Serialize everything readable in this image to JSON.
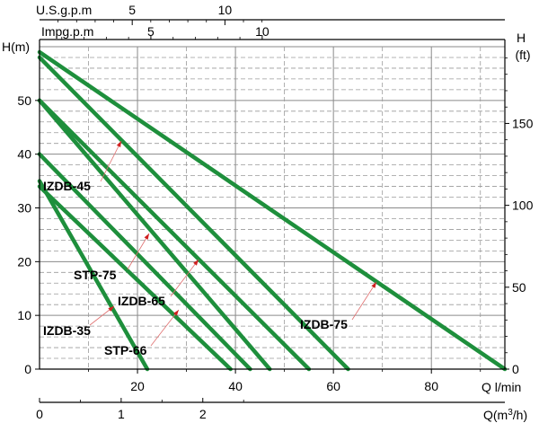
{
  "chart_data": {
    "type": "line",
    "axes": {
      "left": {
        "title": "H(m)",
        "ticks": [
          "0",
          "10",
          "20",
          "30",
          "40",
          "50"
        ],
        "range": [
          0,
          60
        ]
      },
      "right": {
        "title_lines": [
          "H",
          "(ft)"
        ],
        "ticks": [
          "0",
          "50",
          "100",
          "150"
        ],
        "range_ft": [
          0,
          196.85
        ]
      },
      "bottom_lmin": {
        "title": "Q l/min",
        "ticks": [
          "20",
          "40",
          "60",
          "80"
        ],
        "range": [
          0,
          95
        ]
      },
      "bottom_m3h": {
        "title_prefix": "Q(m",
        "title_sup": "3",
        "title_suffix": "/h)",
        "ticks": [
          "0",
          "1",
          "2"
        ]
      },
      "top_usgpm": {
        "title": "U.S.g.p.m",
        "ticks": [
          "5",
          "10"
        ]
      },
      "top_impgpm": {
        "title": "Impg.p.m",
        "ticks": [
          "5",
          "10"
        ]
      }
    },
    "grid": true,
    "series": [
      {
        "name": "IZDB-75",
        "x": [
          0,
          95
        ],
        "y": [
          59,
          0
        ]
      },
      {
        "name": "",
        "x": [
          0,
          63
        ],
        "y": [
          58,
          0
        ]
      },
      {
        "name": "",
        "x": [
          0,
          55
        ],
        "y": [
          50,
          0
        ]
      },
      {
        "name": "IZDB-65",
        "x": [
          0,
          47
        ],
        "y": [
          50,
          0
        ]
      },
      {
        "name": "IZDB-45",
        "x": [
          0,
          43
        ],
        "y": [
          40,
          0
        ]
      },
      {
        "name": "STP-75",
        "x": [
          0,
          39
        ],
        "y": [
          34,
          0
        ]
      },
      {
        "name": "IZDB-35",
        "x": [
          0,
          22
        ],
        "y": [
          35,
          0
        ]
      }
    ],
    "labels": [
      "IZDB-45",
      "STP-75",
      "IZDB-65",
      "IZDB-35",
      "STP-66",
      "IZDB-75"
    ],
    "colors": {
      "curve": "#1e8f3c",
      "arrow": "#d02020",
      "grid": "#999999"
    }
  }
}
